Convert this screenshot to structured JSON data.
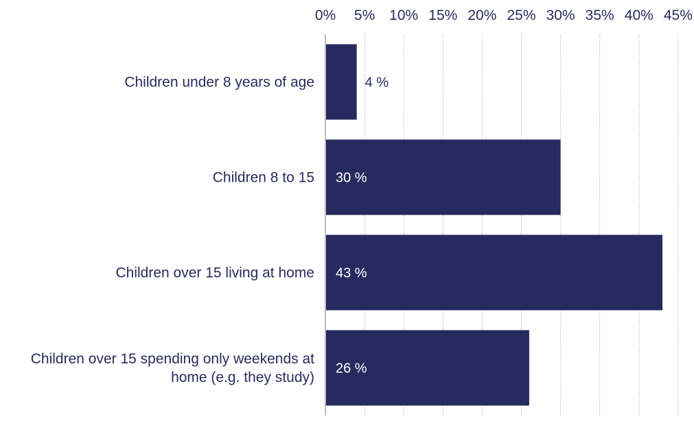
{
  "chart_data": {
    "type": "bar",
    "orientation": "horizontal",
    "categories": [
      [
        "Children under 8 years of age"
      ],
      [
        "Children 8 to 15"
      ],
      [
        "Children over 15 living at home"
      ],
      [
        "Children over 15 spending only weekends at",
        "home (e.g. they study)"
      ]
    ],
    "values": [
      4,
      30,
      43,
      26
    ],
    "data_labels": [
      "4 %",
      "30 %",
      "43 %",
      "26 %"
    ],
    "xlim": [
      0,
      45
    ],
    "xticks": [
      0,
      5,
      10,
      15,
      20,
      25,
      30,
      35,
      40,
      45
    ],
    "xtick_labels": [
      "0%",
      "5%",
      "10%",
      "15%",
      "20%",
      "25%",
      "30%",
      "35%",
      "40%",
      "45%"
    ],
    "x_axis_position": "top",
    "grid": "vertical dotted",
    "legend": "none",
    "title": "",
    "xlabel": "",
    "ylabel": "",
    "colors": {
      "bar": "#272a5e",
      "label_inside": "#ffffff",
      "label_outside": "#272a5e",
      "text": "#2a2a5e",
      "grid": "#9a9a9a",
      "axis": "#777777"
    }
  }
}
